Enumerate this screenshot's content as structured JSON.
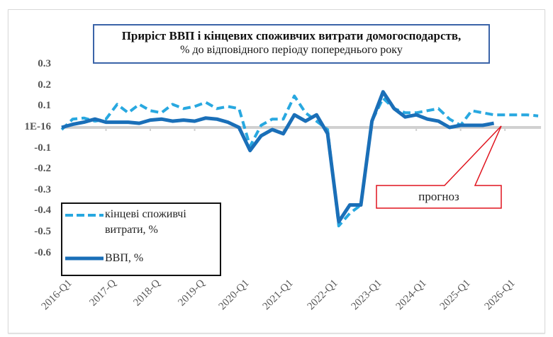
{
  "chart": {
    "title_line1": "Приріст ВВП і кінцевих споживчих витрати домогосподарств,",
    "title_line2": "% до відповідного періоду попереднього року",
    "y_ticks": [
      "0.3",
      "0.2",
      "0.1",
      "1E-16",
      "-0.1",
      "-0.2",
      "-0.3",
      "-0.4",
      "-0.5",
      "-0.6"
    ],
    "x_ticks": [
      "2016-Q1",
      "2017-Q",
      "2018-Q",
      "2019-Q",
      "2020-Q1",
      "2021-Q1",
      "2022-Q1",
      "2023-Q1",
      "2024-Q1",
      "2025-Q1",
      "2026-Q1"
    ],
    "legend": {
      "consumption_label": "кінцеві споживчі витрати, %",
      "consumption_line1": "кінцеві споживчі",
      "consumption_line2": "витрати, %",
      "gdp_label": "ВВП, %"
    },
    "callout_label": "прогноз",
    "colors": {
      "gdp": "#1a6fb8",
      "consumption": "#28a8e0",
      "callout": "#e0141e",
      "title_border": "#3b64a8",
      "zero_line": "#d0d0d0"
    }
  },
  "chart_data": {
    "type": "line",
    "title": "Приріст ВВП і кінцевих споживчих витрати домогосподарств, % до відповідного періоду попереднього року",
    "xlabel": "",
    "ylabel": "",
    "ylim": [
      -0.6,
      0.3
    ],
    "y_tick_labels": [
      "0.3",
      "0.2",
      "0.1",
      "1E-16",
      "-0.1",
      "-0.2",
      "-0.3",
      "-0.4",
      "-0.5",
      "-0.6"
    ],
    "x_tick_labels": [
      "2016-Q1",
      "2017-Q",
      "2018-Q",
      "2019-Q",
      "2020-Q1",
      "2021-Q1",
      "2022-Q1",
      "2023-Q1",
      "2024-Q1",
      "2025-Q1",
      "2026-Q1"
    ],
    "legend_position": "lower-left inside plot",
    "grid": false,
    "annotations": [
      {
        "text": "прогноз",
        "points_to": "forecast period 2025-Q4 onward"
      }
    ],
    "x": [
      "2016-Q1",
      "2016-Q2",
      "2016-Q3",
      "2016-Q4",
      "2017-Q1",
      "2017-Q2",
      "2017-Q3",
      "2017-Q4",
      "2018-Q1",
      "2018-Q2",
      "2018-Q3",
      "2018-Q4",
      "2019-Q1",
      "2019-Q2",
      "2019-Q3",
      "2019-Q4",
      "2020-Q1",
      "2020-Q2",
      "2020-Q3",
      "2020-Q4",
      "2021-Q1",
      "2021-Q2",
      "2021-Q3",
      "2021-Q4",
      "2022-Q1",
      "2022-Q2",
      "2022-Q3",
      "2022-Q4",
      "2023-Q1",
      "2023-Q2",
      "2023-Q3",
      "2023-Q4",
      "2024-Q1",
      "2024-Q2",
      "2024-Q3",
      "2024-Q4",
      "2025-Q1",
      "2025-Q2",
      "2025-Q3",
      "2025-Q4",
      "2026-Q1",
      "2026-Q2",
      "2026-Q3",
      "2026-Q4"
    ],
    "series": [
      {
        "name": "кінцеві споживчі витрати, %",
        "style": "dashed",
        "values": [
          -0.01,
          0.04,
          0.045,
          0.03,
          0.04,
          0.11,
          0.07,
          0.11,
          0.08,
          0.07,
          0.11,
          0.09,
          0.1,
          0.12,
          0.09,
          0.1,
          0.09,
          -0.09,
          0.01,
          0.04,
          0.04,
          0.15,
          0.07,
          0.03,
          -0.01,
          -0.47,
          -0.41,
          -0.37,
          0.03,
          0.14,
          0.09,
          0.07,
          0.07,
          0.08,
          0.09,
          0.04,
          0.01,
          0.08,
          0.07,
          0.06,
          0.06,
          0.06,
          0.06,
          0.055
        ]
      },
      {
        "name": "ВВП, %",
        "style": "solid",
        "values": [
          0.0,
          0.015,
          0.025,
          0.04,
          0.025,
          0.025,
          0.025,
          0.02,
          0.035,
          0.04,
          0.03,
          0.035,
          0.03,
          0.045,
          0.04,
          0.025,
          0.0,
          -0.11,
          -0.04,
          -0.01,
          -0.03,
          0.06,
          0.03,
          0.06,
          -0.03,
          -0.45,
          -0.37,
          -0.37,
          0.03,
          0.17,
          0.09,
          0.05,
          0.06,
          0.04,
          0.03,
          0.0,
          0.01,
          0.01,
          0.01,
          0.02,
          null,
          null,
          null,
          null
        ]
      }
    ]
  }
}
